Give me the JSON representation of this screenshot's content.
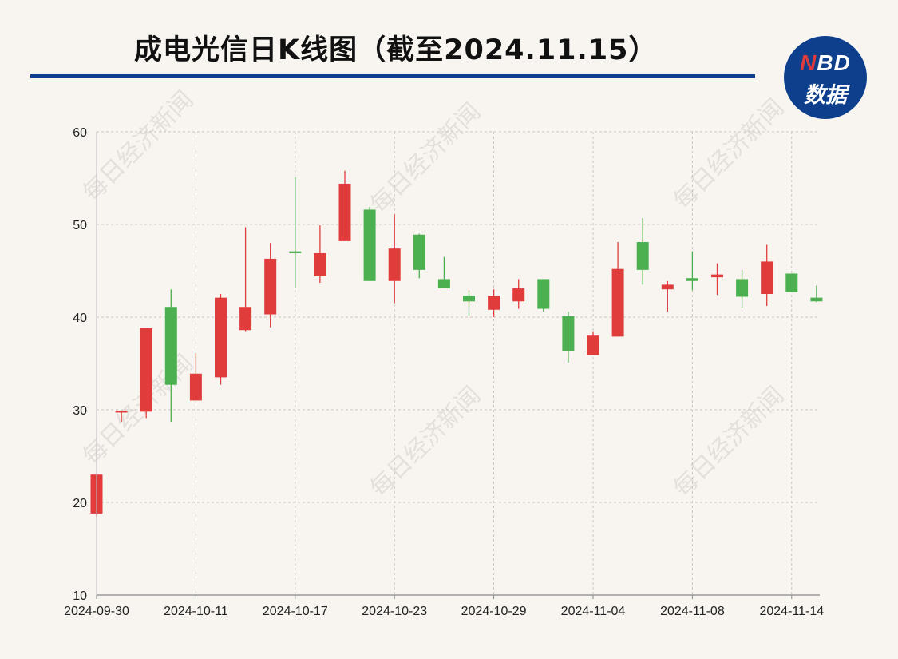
{
  "header": {
    "title": "成电光信日K线图（截至2024.11.15）",
    "logo_brand_accent": "N",
    "logo_brand_rest": "BD",
    "logo_sub": "数据"
  },
  "watermark": "每日经济新闻",
  "colors": {
    "up": "#e03c3c",
    "down": "#4caf50",
    "title_rule": "#0e3f8d",
    "grid": "#c9c4bd",
    "background": "#f8f5f0"
  },
  "chart_data": {
    "type": "candlestick",
    "title": "成电光信日K线图（截至2024.11.15）",
    "ylim": [
      10,
      60
    ],
    "y_ticks": [
      10,
      20,
      30,
      40,
      50,
      60
    ],
    "x_tick_labels": [
      "2024-09-30",
      "2024-10-11",
      "2024-10-17",
      "2024-10-23",
      "2024-10-29",
      "2024-11-04",
      "2024-11-08",
      "2024-11-14"
    ],
    "grid": true,
    "candles": [
      {
        "date": "2024-09-30",
        "open": 18.8,
        "high": 23.0,
        "low": 18.4,
        "close": 23.0
      },
      {
        "date": "2024-10-08",
        "open": 29.7,
        "high": 29.9,
        "low": 28.7,
        "close": 29.9
      },
      {
        "date": "2024-10-09",
        "open": 29.8,
        "high": 38.8,
        "low": 29.1,
        "close": 38.8
      },
      {
        "date": "2024-10-10",
        "open": 41.1,
        "high": 43.0,
        "low": 28.7,
        "close": 32.7
      },
      {
        "date": "2024-10-11",
        "open": 31.0,
        "high": 36.1,
        "low": 31.0,
        "close": 33.9
      },
      {
        "date": "2024-10-14",
        "open": 33.5,
        "high": 42.5,
        "low": 32.7,
        "close": 42.1
      },
      {
        "date": "2024-10-15",
        "open": 38.6,
        "high": 49.7,
        "low": 38.4,
        "close": 41.1
      },
      {
        "date": "2024-10-16",
        "open": 40.3,
        "high": 48.0,
        "low": 38.9,
        "close": 46.3
      },
      {
        "date": "2024-10-17",
        "open": 47.1,
        "high": 55.1,
        "low": 43.2,
        "close": 46.9
      },
      {
        "date": "2024-10-18",
        "open": 44.4,
        "high": 49.9,
        "low": 43.7,
        "close": 46.9
      },
      {
        "date": "2024-10-21",
        "open": 48.2,
        "high": 55.8,
        "low": 48.2,
        "close": 54.4
      },
      {
        "date": "2024-10-22",
        "open": 51.6,
        "high": 51.9,
        "low": 43.9,
        "close": 43.9
      },
      {
        "date": "2024-10-23",
        "open": 43.9,
        "high": 51.1,
        "low": 41.5,
        "close": 47.4
      },
      {
        "date": "2024-10-24",
        "open": 48.9,
        "high": 49.0,
        "low": 44.2,
        "close": 45.1
      },
      {
        "date": "2024-10-25",
        "open": 44.1,
        "high": 46.5,
        "low": 43.1,
        "close": 43.1
      },
      {
        "date": "2024-10-28",
        "open": 42.3,
        "high": 42.9,
        "low": 40.2,
        "close": 41.7
      },
      {
        "date": "2024-10-29",
        "open": 40.8,
        "high": 43.0,
        "low": 40.0,
        "close": 42.3
      },
      {
        "date": "2024-10-30",
        "open": 41.7,
        "high": 44.1,
        "low": 40.9,
        "close": 43.1
      },
      {
        "date": "2024-10-31",
        "open": 44.1,
        "high": 44.1,
        "low": 40.6,
        "close": 40.9
      },
      {
        "date": "2024-11-01",
        "open": 40.1,
        "high": 40.6,
        "low": 35.1,
        "close": 36.3
      },
      {
        "date": "2024-11-04",
        "open": 35.9,
        "high": 38.4,
        "low": 35.9,
        "close": 38.0
      },
      {
        "date": "2024-11-05",
        "open": 37.9,
        "high": 48.1,
        "low": 37.9,
        "close": 45.2
      },
      {
        "date": "2024-11-06",
        "open": 48.1,
        "high": 50.7,
        "low": 43.5,
        "close": 45.1
      },
      {
        "date": "2024-11-07",
        "open": 43.0,
        "high": 43.9,
        "low": 40.6,
        "close": 43.5
      },
      {
        "date": "2024-11-08",
        "open": 44.2,
        "high": 47.1,
        "low": 42.9,
        "close": 43.9
      },
      {
        "date": "2024-11-11",
        "open": 44.3,
        "high": 45.8,
        "low": 42.4,
        "close": 44.6
      },
      {
        "date": "2024-11-12",
        "open": 44.1,
        "high": 45.1,
        "low": 41.0,
        "close": 42.2
      },
      {
        "date": "2024-11-13",
        "open": 42.5,
        "high": 47.8,
        "low": 41.2,
        "close": 46.0
      },
      {
        "date": "2024-11-14",
        "open": 44.7,
        "high": 44.7,
        "low": 42.7,
        "close": 42.7
      },
      {
        "date": "2024-11-15",
        "open": 42.1,
        "high": 43.4,
        "low": 41.6,
        "close": 41.7
      }
    ]
  }
}
